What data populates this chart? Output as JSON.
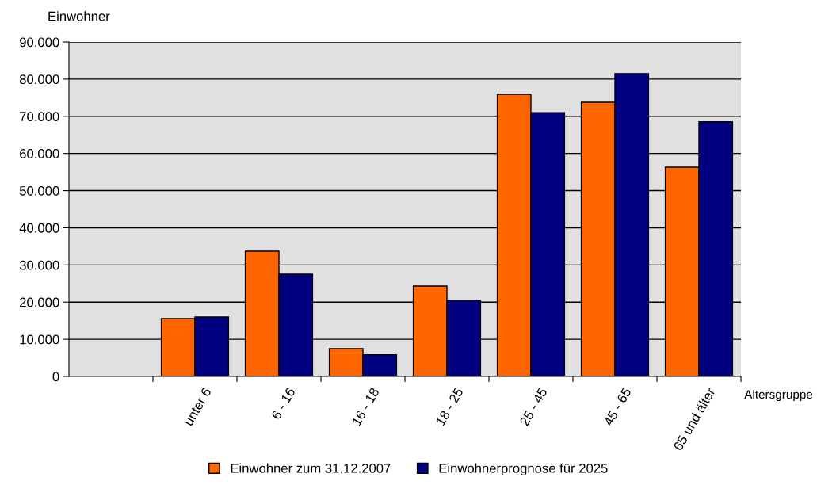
{
  "chart_data": {
    "type": "bar",
    "xlabel": "Altersgruppe",
    "ylabel": "Einwohner",
    "categories": [
      null,
      "unter 6",
      "6 - 16",
      "16 - 18",
      "18 - 25",
      "25 - 45",
      "45 - 65",
      "65 und älter"
    ],
    "series": [
      {
        "name": "Einwohner zum 31.12.2007",
        "color": "#ff6600",
        "values": [
          null,
          15600,
          33700,
          7500,
          24300,
          75900,
          73800,
          56300
        ]
      },
      {
        "name": "Einwohnerprognose für 2025",
        "color": "#000080",
        "values": [
          null,
          16000,
          27500,
          5800,
          20500,
          71000,
          81500,
          68500
        ]
      }
    ],
    "ylim": [
      0,
      90000
    ],
    "yticks": [
      {
        "value": 0,
        "label": "0"
      },
      {
        "value": 10000,
        "label": "10.000"
      },
      {
        "value": 20000,
        "label": "20.000"
      },
      {
        "value": 30000,
        "label": "30.000"
      },
      {
        "value": 40000,
        "label": "40.000"
      },
      {
        "value": 50000,
        "label": "50.000"
      },
      {
        "value": 60000,
        "label": "60.000"
      },
      {
        "value": 70000,
        "label": "70.000"
      },
      {
        "value": 80000,
        "label": "80.000"
      },
      {
        "value": 90000,
        "label": "90.000"
      }
    ],
    "grid": "y",
    "legend": "bottom"
  }
}
